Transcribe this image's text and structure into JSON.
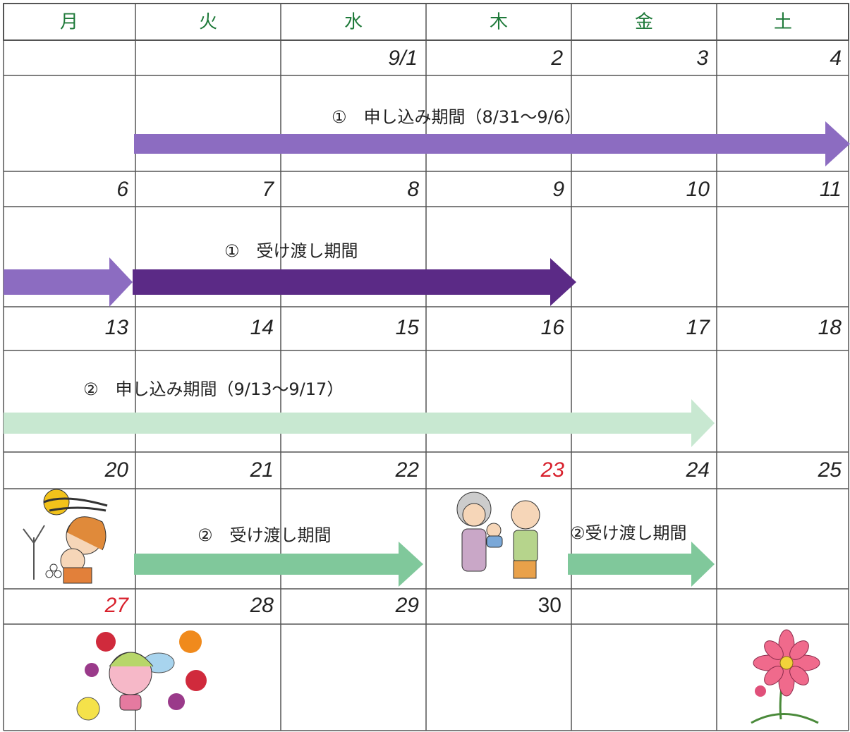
{
  "header": {
    "days": [
      "月",
      "火",
      "水",
      "木",
      "金",
      "土"
    ]
  },
  "weeks": [
    {
      "dates": [
        "9/1",
        "2",
        "3",
        "4"
      ],
      "events": [
        {
          "label": "①　申し込み期間（8/31～9/6）"
        }
      ]
    },
    {
      "dates": [
        "6",
        "7",
        "8",
        "9",
        "10",
        "11"
      ],
      "events": [
        {
          "label": "①　受け渡し期間"
        }
      ]
    },
    {
      "dates": [
        "13",
        "14",
        "15",
        "16",
        "17",
        "18"
      ],
      "events": [
        {
          "label": "②　申し込み期間（9/13～9/17）"
        }
      ]
    },
    {
      "dates": [
        "20",
        "21",
        "22",
        "23",
        "24",
        "25"
      ],
      "events": [
        {
          "label": "②　受け渡し期間"
        },
        {
          "label": "②受け渡し期間"
        }
      ]
    },
    {
      "dates": [
        "27",
        "28",
        "29",
        "30"
      ]
    }
  ]
}
